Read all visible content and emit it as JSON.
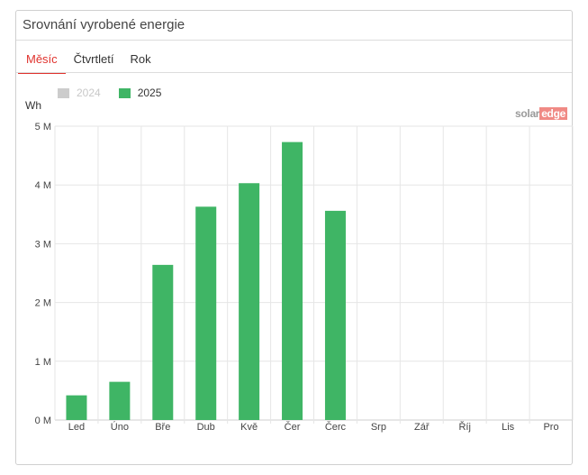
{
  "panel": {
    "title": "Srovnání vyrobené energie",
    "tabs": [
      {
        "label": "Měsíc",
        "active": true
      },
      {
        "label": "Čtvrtletí",
        "active": false
      },
      {
        "label": "Rok",
        "active": false
      }
    ],
    "brand": {
      "part1": "solar",
      "part2": "edge"
    }
  },
  "colors": {
    "accent": "#e0322d",
    "bar_2025": "#3fb565",
    "legend_2024": "#cccccc",
    "grid": "#e6e6e6"
  },
  "chart_data": {
    "type": "bar",
    "ylabel": "Wh",
    "ylim": [
      0,
      5000000
    ],
    "yticks": [
      {
        "value": 0,
        "label": "0 M"
      },
      {
        "value": 1000000,
        "label": "1 M"
      },
      {
        "value": 2000000,
        "label": "2 M"
      },
      {
        "value": 3000000,
        "label": "3 M"
      },
      {
        "value": 4000000,
        "label": "4 M"
      },
      {
        "value": 5000000,
        "label": "5 M"
      }
    ],
    "categories": [
      "Led",
      "Úno",
      "Bře",
      "Dub",
      "Kvě",
      "Čer",
      "Čerc",
      "Srp",
      "Zář",
      "Říj",
      "Lis",
      "Pro"
    ],
    "legend": [
      {
        "name": "2024",
        "visible": false
      },
      {
        "name": "2025",
        "visible": true
      }
    ],
    "series": [
      {
        "name": "2025",
        "values": [
          420000,
          650000,
          2640000,
          3630000,
          4030000,
          4730000,
          3560000,
          null,
          null,
          null,
          null,
          null
        ]
      }
    ],
    "grid": true,
    "legend_position": "top-left"
  }
}
